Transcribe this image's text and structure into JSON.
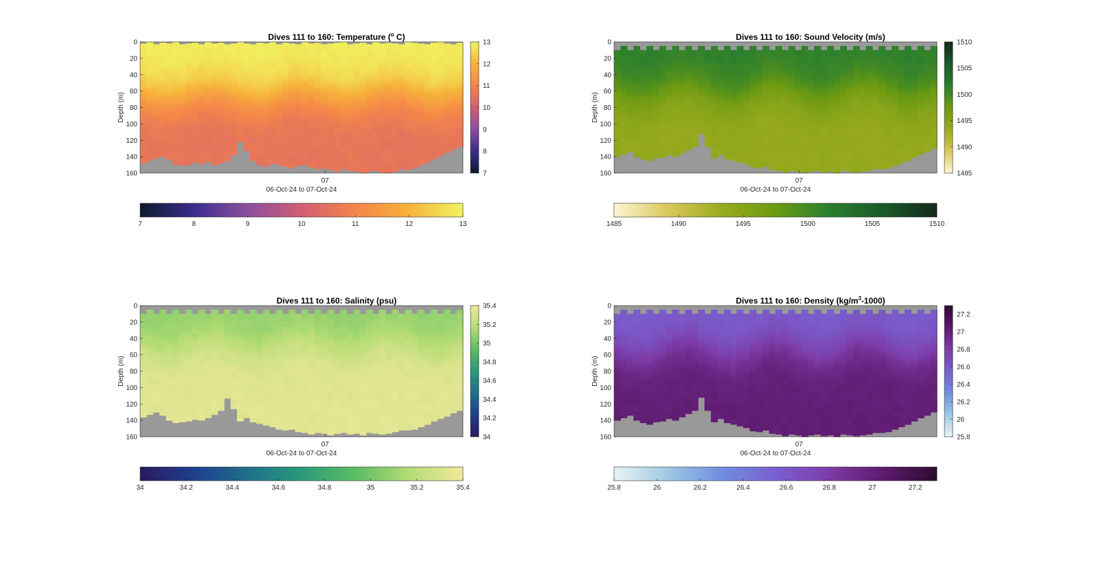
{
  "figure": {
    "panels": [
      {
        "id": "temperature",
        "title_pre": "Dives 111 to 160: Temperature (",
        "title_sup": "o",
        "title_post": " C)"
      },
      {
        "id": "soundvel",
        "title_pre": "Dives 111 to 160: Sound Velocity (m/s)",
        "title_sup": "",
        "title_post": ""
      },
      {
        "id": "salinity",
        "title_pre": "Dives 111 to 160: Salinity (psu)",
        "title_sup": "",
        "title_post": ""
      },
      {
        "id": "density",
        "title_pre": "Dives 111 to 160: Density (kg/m",
        "title_sup": "3",
        "title_post": "-1000)"
      }
    ]
  },
  "chart_data": [
    {
      "type": "heatmap",
      "title": "Dives 111 to 160: Temperature (o C)",
      "ylabel": "Depth (m)",
      "xlabel": "06-Oct-24 to 07-Oct-24",
      "x_tick_labels": [
        "07"
      ],
      "y_ticks": [
        0,
        20,
        40,
        60,
        80,
        100,
        120,
        140,
        160
      ],
      "ylim": [
        0,
        160
      ],
      "y_reversed": true,
      "colorbar_ticks": [
        "7",
        "8",
        "9",
        "10",
        "11",
        "12",
        "13"
      ],
      "colorbar_ticks_side": [
        "7",
        "8",
        "9",
        "10",
        "11",
        "12",
        "13"
      ],
      "clim": [
        7,
        13
      ],
      "colormap": [
        "#0d1a2e",
        "#3b2d8f",
        "#8c4f9e",
        "#d15e73",
        "#f4854a",
        "#f7b33a",
        "#f0f361"
      ],
      "nodata_color": "#999999",
      "profile_model": {
        "surface_value": 12.9,
        "deep_value": 10.6,
        "mixed_layer_depth_m": [
          55,
          70
        ]
      },
      "bottom_depth_m": [
        148,
        145,
        142,
        140,
        144,
        150,
        151,
        150,
        147,
        149,
        146,
        150,
        148,
        145,
        138,
        122,
        133,
        145,
        150,
        152,
        148,
        150,
        152,
        154,
        151,
        150,
        153,
        155,
        154,
        156,
        158,
        155,
        157,
        158,
        160,
        158,
        157,
        159,
        160,
        158,
        155,
        156,
        154,
        150,
        147,
        143,
        139,
        135,
        131,
        128
      ],
      "surface_gap_m": [
        2,
        0,
        3,
        1,
        2,
        0,
        3,
        2,
        1,
        3,
        0,
        2,
        1,
        3,
        2,
        0,
        2,
        3,
        1,
        2,
        0,
        3,
        1,
        2,
        3,
        0,
        2,
        1,
        3,
        2,
        1,
        0,
        3,
        2,
        1,
        3,
        0,
        2,
        1,
        2,
        3,
        0,
        1,
        2,
        3,
        1,
        0,
        2,
        3,
        1
      ]
    },
    {
      "type": "heatmap",
      "title": "Dives 111 to 160: Sound Velocity (m/s)",
      "ylabel": "Depth (m)",
      "xlabel": "06-Oct-24 to 07-Oct-24",
      "x_tick_labels": [
        "07"
      ],
      "y_ticks": [
        0,
        20,
        40,
        60,
        80,
        100,
        120,
        140,
        160
      ],
      "ylim": [
        0,
        160
      ],
      "y_reversed": true,
      "colorbar_ticks": [
        "1485",
        "1490",
        "1495",
        "1500",
        "1505",
        "1510"
      ],
      "colorbar_ticks_side": [
        "1485",
        "1490",
        "1495",
        "1500",
        "1505",
        "1510"
      ],
      "clim": [
        1485,
        1510
      ],
      "colormap": [
        "#fdf7d4",
        "#d9c75b",
        "#9aaa1f",
        "#6b9a12",
        "#2a7f2e",
        "#1a5a2a",
        "#14291a"
      ],
      "nodata_color": "#999999",
      "profile_model": {
        "surface_value": 1501.5,
        "deep_value": 1493.8,
        "mixed_layer_depth_m": [
          45,
          70
        ]
      },
      "bottom_depth_m": [
        140,
        137,
        134,
        140,
        143,
        145,
        142,
        141,
        138,
        140,
        136,
        132,
        128,
        112,
        128,
        142,
        138,
        143,
        145,
        147,
        149,
        153,
        154,
        152,
        156,
        157,
        159,
        157,
        158,
        160,
        158,
        157,
        159,
        158,
        160,
        157,
        158,
        159,
        158,
        157,
        155,
        155,
        154,
        151,
        148,
        145,
        141,
        137,
        134,
        130
      ],
      "surface_gap_m": [
        10,
        5,
        10,
        5,
        10,
        5,
        10,
        5,
        10,
        5,
        10,
        5,
        10,
        5,
        10,
        5,
        10,
        5,
        10,
        5,
        10,
        5,
        10,
        5,
        10,
        5,
        10,
        5,
        10,
        5,
        10,
        5,
        10,
        5,
        10,
        5,
        10,
        5,
        10,
        5,
        10,
        5,
        10,
        5,
        10,
        5,
        10,
        5,
        10,
        5
      ]
    },
    {
      "type": "heatmap",
      "title": "Dives 111 to 160: Salinity (psu)",
      "ylabel": "Depth (m)",
      "xlabel": "06-Oct-24 to 07-Oct-24",
      "x_tick_labels": [
        "07"
      ],
      "y_ticks": [
        0,
        20,
        40,
        60,
        80,
        100,
        120,
        140,
        160
      ],
      "ylim": [
        0,
        160
      ],
      "y_reversed": true,
      "colorbar_ticks": [
        "34",
        "34.2",
        "34.4",
        "34.6",
        "34.8",
        "35",
        "35.2",
        "35.4"
      ],
      "colorbar_ticks_side": [
        "34",
        "34.2",
        "34.4",
        "34.6",
        "34.8",
        "35",
        "35.2",
        "35.4"
      ],
      "clim": [
        34,
        35.4
      ],
      "colormap": [
        "#2a1a5e",
        "#1f3f8f",
        "#1f6f8a",
        "#2a9a7a",
        "#5cbd64",
        "#b4dc74",
        "#f2e89c"
      ],
      "nodata_color": "#999999",
      "profile_model": {
        "surface_value": 35.07,
        "deep_value": 35.34,
        "mixed_layer_depth_m": [
          35,
          55
        ]
      },
      "bottom_depth_m": [
        136,
        133,
        130,
        134,
        140,
        143,
        142,
        141,
        139,
        140,
        137,
        133,
        128,
        113,
        126,
        141,
        137,
        142,
        144,
        146,
        148,
        151,
        152,
        151,
        154,
        155,
        157,
        155,
        156,
        158,
        156,
        155,
        157,
        156,
        158,
        155,
        156,
        157,
        156,
        154,
        152,
        152,
        151,
        148,
        145,
        141,
        138,
        135,
        131,
        128
      ],
      "surface_gap_m": [
        10,
        5,
        10,
        5,
        10,
        5,
        10,
        5,
        10,
        5,
        10,
        5,
        10,
        5,
        10,
        5,
        10,
        5,
        10,
        5,
        10,
        5,
        10,
        5,
        10,
        5,
        10,
        5,
        10,
        5,
        10,
        5,
        10,
        5,
        10,
        5,
        10,
        5,
        10,
        5,
        10,
        5,
        10,
        5,
        10,
        5,
        10,
        5,
        10,
        5
      ]
    },
    {
      "type": "heatmap",
      "title": "Dives 111 to 160: Density (kg/m3-1000)",
      "ylabel": "Depth (m)",
      "xlabel": "06-Oct-24 to 07-Oct-24",
      "x_tick_labels": [
        "07"
      ],
      "y_ticks": [
        0,
        20,
        40,
        60,
        80,
        100,
        120,
        140,
        160
      ],
      "ylim": [
        0,
        160
      ],
      "y_reversed": true,
      "colorbar_ticks": [
        "25.8",
        "26",
        "26.2",
        "26.4",
        "26.6",
        "26.8",
        "27",
        "27.2"
      ],
      "colorbar_ticks_side": [
        "25.8",
        "26",
        "26.2",
        "26.4",
        "26.6",
        "26.8",
        "27",
        "27.2"
      ],
      "clim": [
        25.8,
        27.3
      ],
      "colormap": [
        "#eaf3f6",
        "#9ec9e4",
        "#6f8ee0",
        "#7a60d0",
        "#7d3ca8",
        "#5e1a6e",
        "#2e0b2e"
      ],
      "nodata_color": "#999999",
      "profile_model": {
        "surface_value": 26.57,
        "deep_value": 27.02,
        "mixed_layer_depth_m": [
          40,
          65
        ]
      },
      "bottom_depth_m": [
        140,
        137,
        134,
        140,
        143,
        145,
        142,
        141,
        138,
        140,
        136,
        132,
        128,
        112,
        128,
        142,
        138,
        143,
        145,
        147,
        149,
        153,
        154,
        152,
        156,
        157,
        159,
        157,
        158,
        160,
        158,
        157,
        159,
        158,
        160,
        157,
        158,
        159,
        158,
        157,
        155,
        155,
        154,
        151,
        148,
        145,
        141,
        137,
        134,
        130
      ],
      "surface_gap_m": [
        10,
        5,
        10,
        5,
        10,
        5,
        10,
        5,
        10,
        5,
        10,
        5,
        10,
        5,
        10,
        5,
        10,
        5,
        10,
        5,
        10,
        5,
        10,
        5,
        10,
        5,
        10,
        5,
        10,
        5,
        10,
        5,
        10,
        5,
        10,
        5,
        10,
        5,
        10,
        5,
        10,
        5,
        10,
        5,
        10,
        5,
        10,
        5,
        10,
        5
      ]
    }
  ]
}
